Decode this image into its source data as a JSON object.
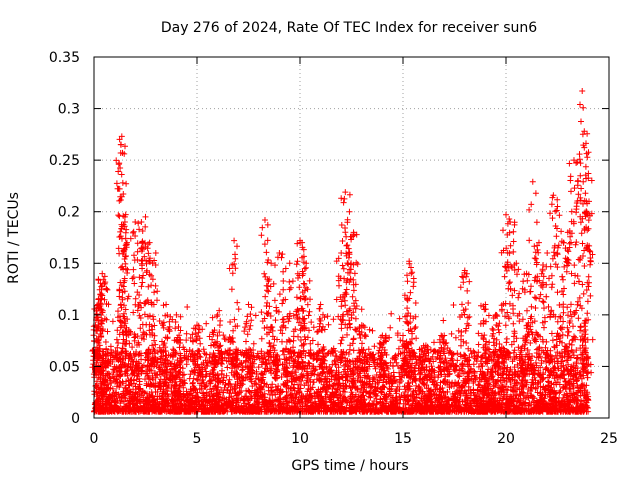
{
  "chart_data": {
    "type": "scatter",
    "title": "Day 276 of 2024, Rate Of TEC Index for receiver sun6",
    "xlabel": "GPS time / hours",
    "ylabel": "ROTI / TECUs",
    "xlim": [
      0,
      25
    ],
    "ylim": [
      0,
      0.35
    ],
    "xticks": [
      0,
      5,
      10,
      15,
      20,
      25
    ],
    "xtick_labels": [
      "0",
      "5",
      "10",
      "15",
      "20",
      "25"
    ],
    "yticks": [
      0,
      0.05,
      0.1,
      0.15,
      0.2,
      0.25,
      0.3,
      0.35
    ],
    "ytick_labels": [
      "0",
      "0.05",
      "0.1",
      "0.15",
      "0.2",
      "0.25",
      "0.3",
      "0.35"
    ],
    "grid": true,
    "marker": "+",
    "color": "#ff0000",
    "series": [
      {
        "name": "ROTI",
        "sample_points": [
          [
            0.1,
            0.095
          ],
          [
            0.2,
            0.11
          ],
          [
            0.3,
            0.12
          ],
          [
            0.4,
            0.14
          ],
          [
            0.5,
            0.13
          ],
          [
            1.3,
            0.265
          ],
          [
            1.35,
            0.273
          ],
          [
            1.4,
            0.228
          ],
          [
            1.5,
            0.19
          ],
          [
            1.6,
            0.17
          ],
          [
            2.0,
            0.19
          ],
          [
            2.3,
            0.19
          ],
          [
            2.5,
            0.195
          ],
          [
            2.7,
            0.17
          ],
          [
            3.0,
            0.16
          ],
          [
            3.5,
            0.11
          ],
          [
            4.0,
            0.1
          ],
          [
            5.0,
            0.09
          ],
          [
            6.0,
            0.1
          ],
          [
            6.8,
            0.172
          ],
          [
            7.5,
            0.11
          ],
          [
            8.3,
            0.192
          ],
          [
            8.6,
            0.15
          ],
          [
            9.0,
            0.16
          ],
          [
            9.5,
            0.15
          ],
          [
            10.0,
            0.172
          ],
          [
            10.1,
            0.17
          ],
          [
            10.3,
            0.15
          ],
          [
            11.0,
            0.11
          ],
          [
            12.0,
            0.16
          ],
          [
            12.2,
            0.219
          ],
          [
            12.4,
            0.2
          ],
          [
            12.6,
            0.18
          ],
          [
            13.0,
            0.09
          ],
          [
            14.0,
            0.08
          ],
          [
            15.0,
            0.08
          ],
          [
            15.3,
            0.152
          ],
          [
            15.4,
            0.14
          ],
          [
            16.0,
            0.07
          ],
          [
            17.0,
            0.08
          ],
          [
            18.0,
            0.143
          ],
          [
            19.0,
            0.11
          ],
          [
            19.5,
            0.1
          ],
          [
            20.0,
            0.197
          ],
          [
            20.2,
            0.19
          ],
          [
            20.5,
            0.15
          ],
          [
            21.0,
            0.14
          ],
          [
            21.3,
            0.229
          ],
          [
            21.6,
            0.17
          ],
          [
            22.0,
            0.16
          ],
          [
            22.3,
            0.216
          ],
          [
            22.5,
            0.205
          ],
          [
            22.8,
            0.17
          ],
          [
            23.0,
            0.18
          ],
          [
            23.3,
            0.25
          ],
          [
            23.5,
            0.23
          ],
          [
            23.7,
            0.317
          ],
          [
            23.8,
            0.278
          ],
          [
            23.9,
            0.21
          ],
          [
            24.0,
            0.237
          ]
        ]
      }
    ]
  }
}
